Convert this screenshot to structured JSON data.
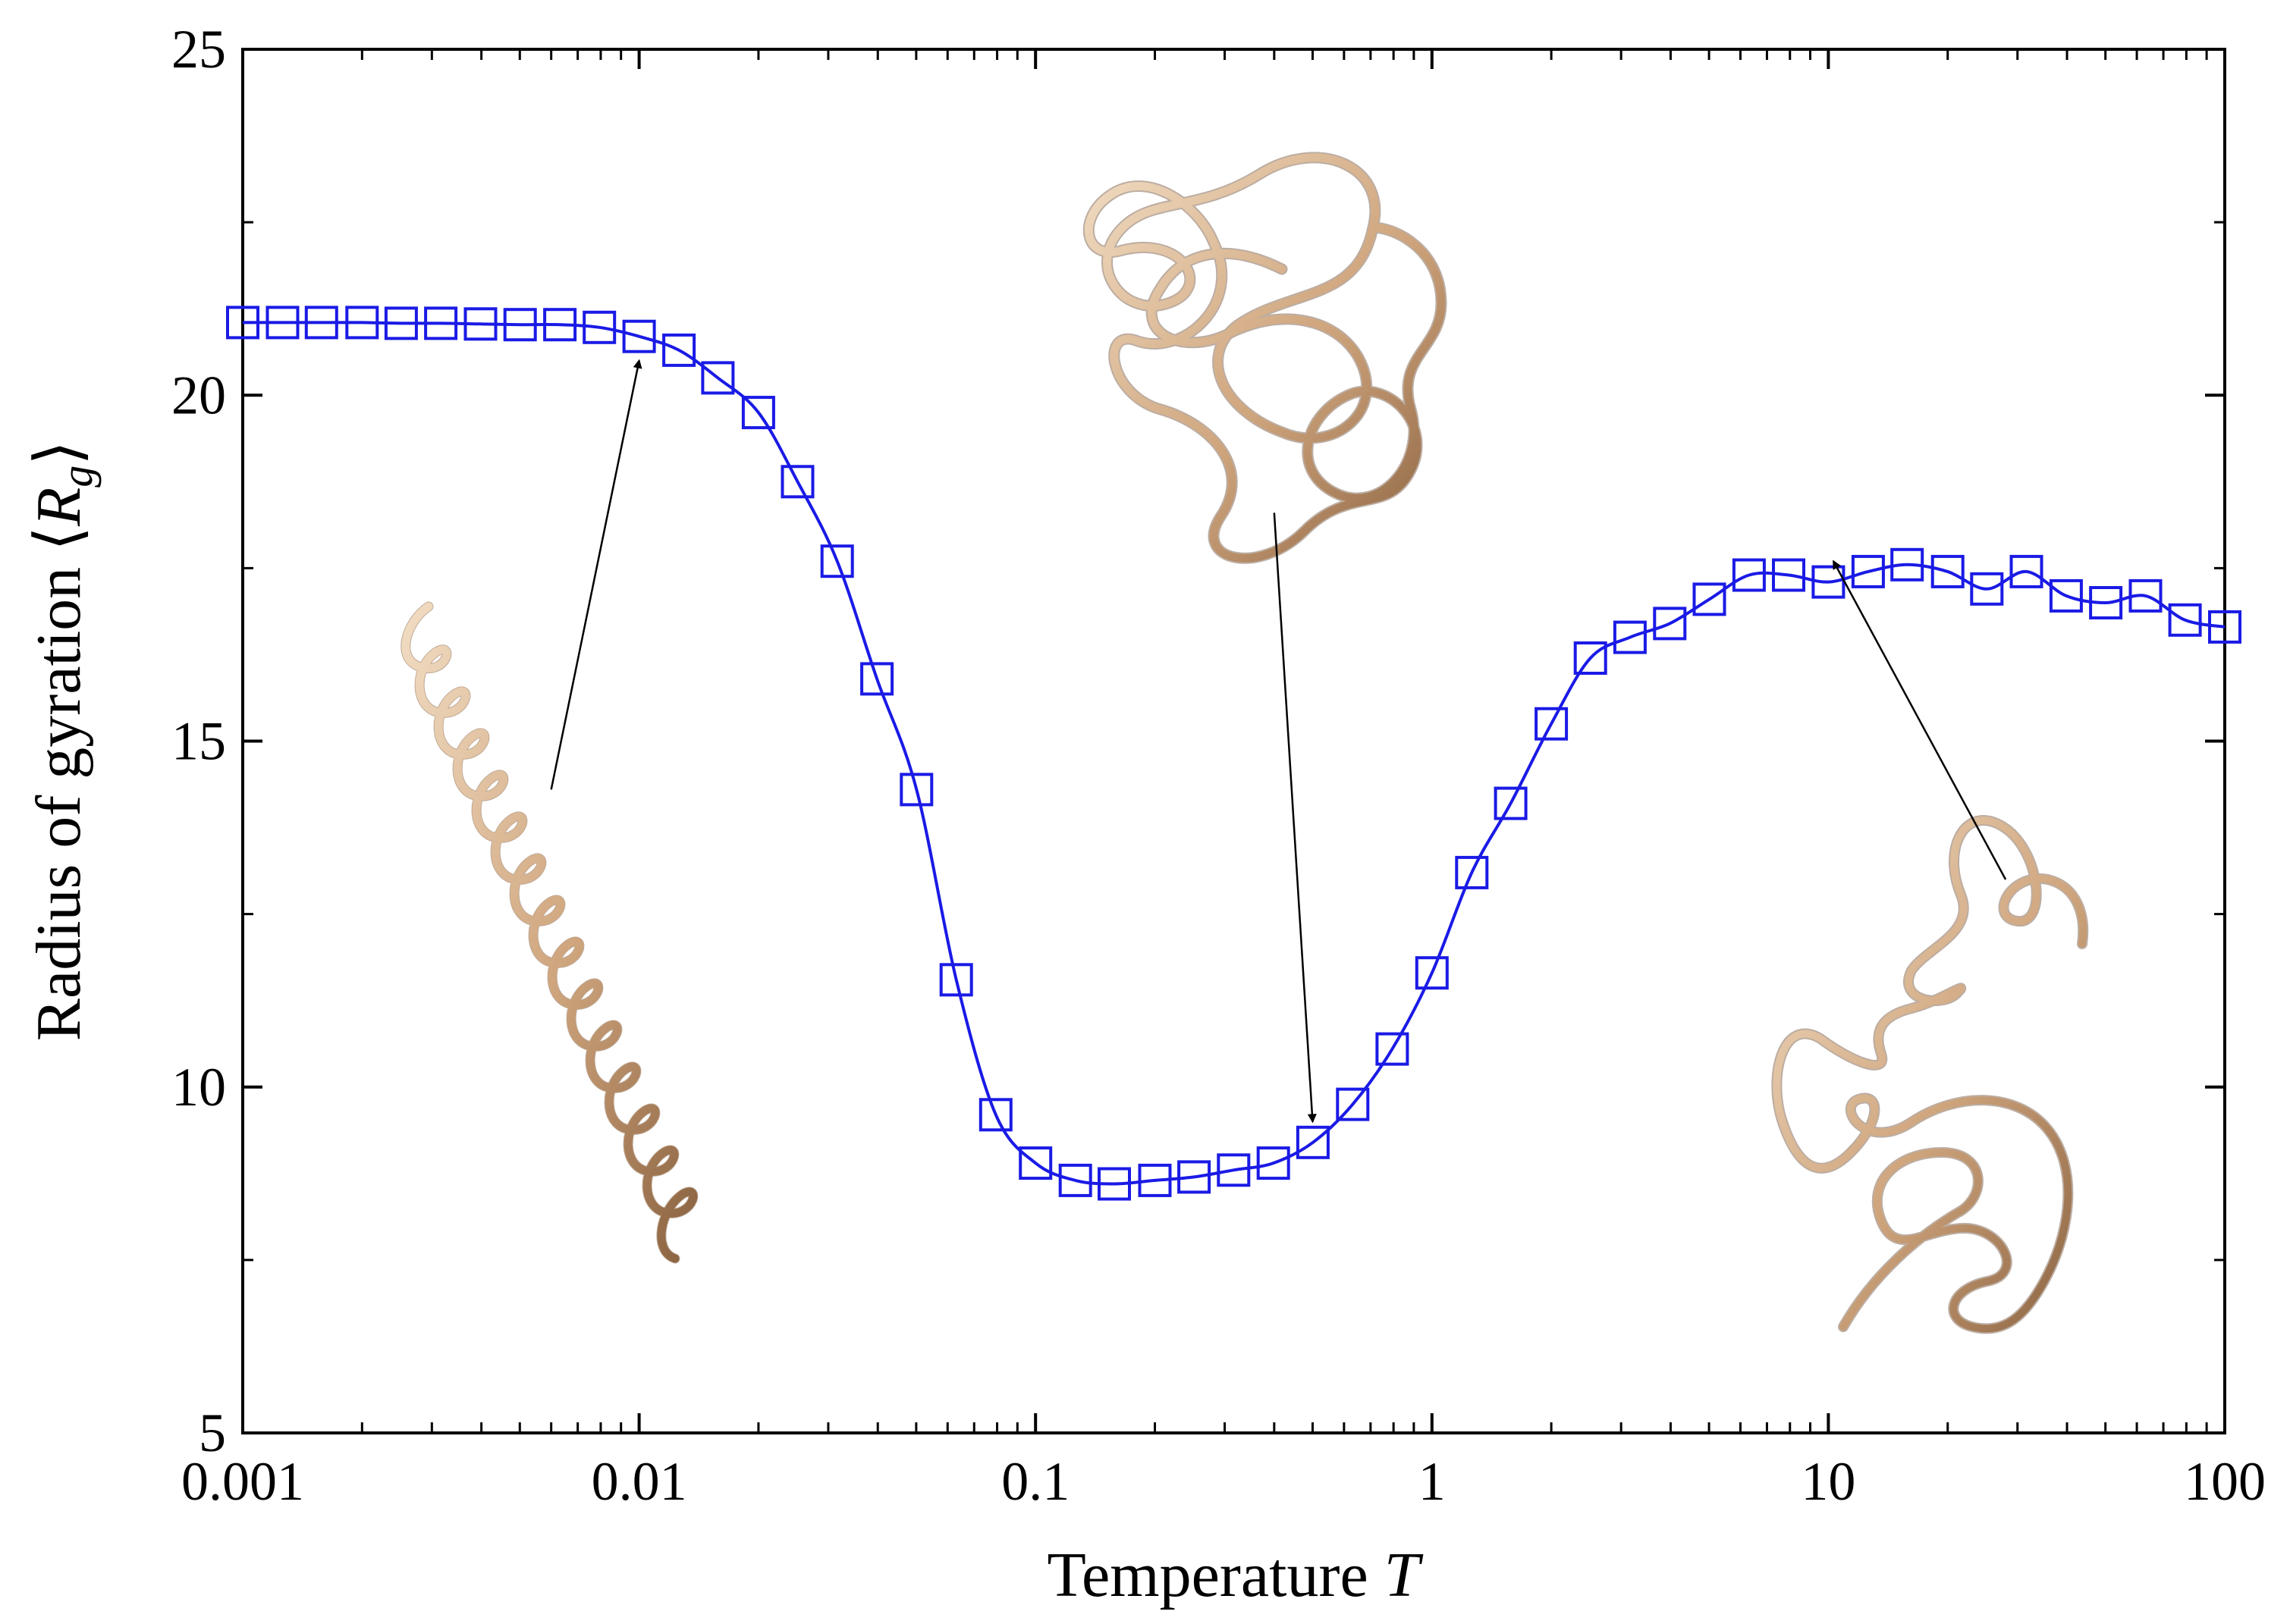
{
  "chart_data": {
    "type": "line",
    "title": "",
    "xlabel": "Temperature T",
    "xlabel_parts": {
      "text": "Temperature ",
      "symbol": "T"
    },
    "ylabel": "Radius of gyration ⟨Rg⟩",
    "ylabel_parts": {
      "text": "Radius of gyration ",
      "open": "⟨",
      "symbol": "R",
      "subscript": "g",
      "close": "⟩"
    },
    "x_scale": "log",
    "xlim": [
      0.001,
      100
    ],
    "ylim": [
      5,
      25
    ],
    "x_ticks": [
      0.001,
      0.01,
      0.1,
      1,
      10,
      100
    ],
    "x_tick_labels": [
      "0.001",
      "0.01",
      "0.1",
      "1",
      "10",
      "100"
    ],
    "y_ticks": [
      5,
      10,
      15,
      20,
      25
    ],
    "y_tick_labels": [
      "5",
      "10",
      "15",
      "20",
      "25"
    ],
    "y_minor_ticks": [
      7.5,
      12.5,
      17.5,
      22.5
    ],
    "grid": false,
    "series_color": "#1a1ae6",
    "marker": "square",
    "series": [
      {
        "name": "",
        "x": [
          0.001,
          0.00126,
          0.00158,
          0.002,
          0.00251,
          0.00316,
          0.00398,
          0.00501,
          0.00631,
          0.00794,
          0.01,
          0.0126,
          0.0158,
          0.02,
          0.0251,
          0.0316,
          0.0398,
          0.0501,
          0.0631,
          0.0794,
          0.1,
          0.126,
          0.158,
          0.2,
          0.251,
          0.316,
          0.398,
          0.501,
          0.631,
          0.794,
          1.0,
          1.26,
          1.58,
          2.0,
          2.51,
          3.16,
          3.98,
          5.01,
          6.31,
          7.94,
          10.0,
          12.6,
          15.8,
          20.0,
          25.1,
          31.6,
          39.8,
          50.1,
          63.1,
          79.4,
          100
        ],
        "y": [
          21.05,
          21.05,
          21.05,
          21.05,
          21.04,
          21.04,
          21.03,
          21.02,
          21.02,
          20.98,
          20.85,
          20.65,
          20.25,
          19.75,
          18.75,
          17.6,
          15.9,
          14.3,
          11.55,
          9.6,
          8.9,
          8.65,
          8.6,
          8.65,
          8.7,
          8.8,
          8.9,
          9.2,
          9.75,
          10.55,
          11.65,
          13.1,
          14.1,
          15.25,
          16.2,
          16.5,
          16.7,
          17.05,
          17.4,
          17.4,
          17.3,
          17.45,
          17.55,
          17.45,
          17.2,
          17.45,
          17.1,
          17.0,
          17.1,
          16.75,
          16.65
        ]
      }
    ],
    "annotations": [
      {
        "kind": "arrow",
        "from": [
          0.006,
          14.3
        ],
        "to": [
          0.01,
          20.5
        ]
      },
      {
        "kind": "arrow",
        "from": [
          0.4,
          18.3
        ],
        "to": [
          0.5,
          9.5
        ]
      },
      {
        "kind": "arrow",
        "from": [
          28,
          13.0
        ],
        "to": [
          10.3,
          17.6
        ]
      }
    ],
    "insets": [
      {
        "name": "helix-conformation",
        "description": "helical polymer conformation (low temperature)"
      },
      {
        "name": "compact-globule-conformation",
        "description": "compact coiled conformation (intermediate temperature)"
      },
      {
        "name": "extended-coil-conformation",
        "description": "extended random coil conformation (high temperature)"
      }
    ],
    "inset_colors": {
      "tube_light": "#f1dcc2",
      "tube_mid": "#cfa57d",
      "tube_dark": "#6b4a30"
    }
  }
}
